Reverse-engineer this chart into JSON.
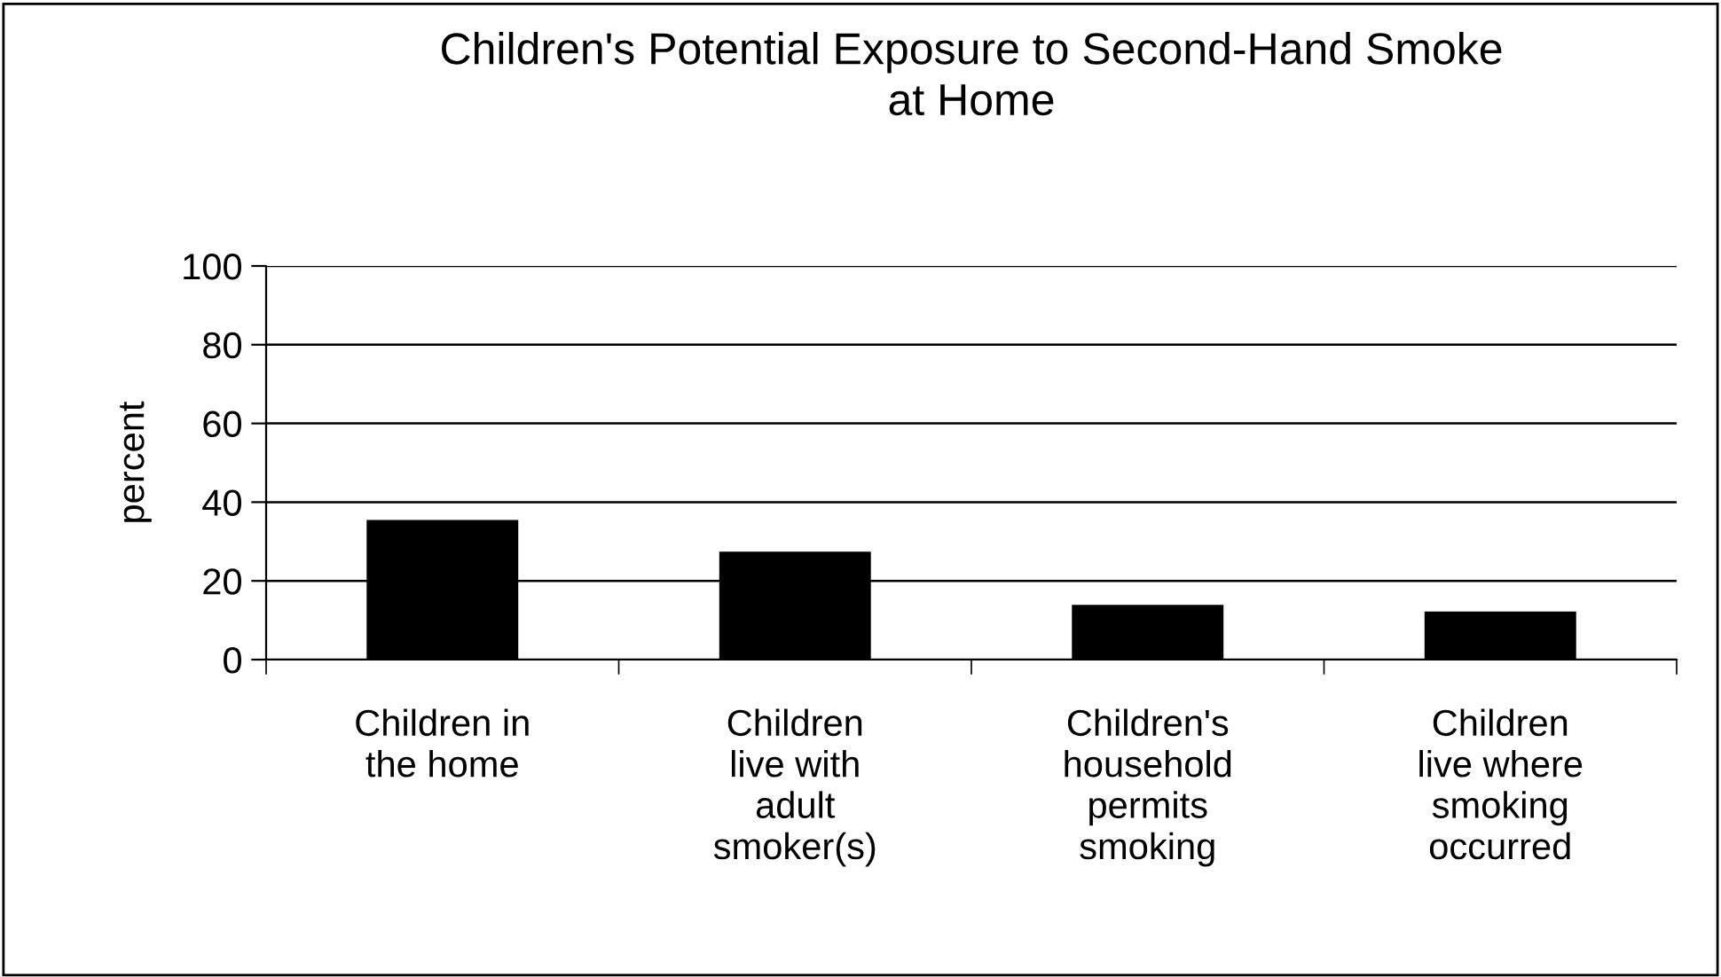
{
  "chart_data": {
    "type": "bar",
    "title": "Children's Potential Exposure to Second-Hand Smoke\nat Home",
    "ylabel": "percent",
    "categories": [
      "Children in\nthe home",
      "Children\nlive with\nadult\nsmoker(s)",
      "Children's\nhousehold\npermits\nsmoking",
      "Children\nlive where\nsmoking\noccurred"
    ],
    "values": [
      35.5,
      27.4,
      13.9,
      12.2
    ],
    "color": "#000000",
    "ylim": [
      0,
      100
    ],
    "yticks": [
      0,
      20,
      40,
      60,
      80,
      100
    ],
    "grid": "y",
    "legend": false
  }
}
